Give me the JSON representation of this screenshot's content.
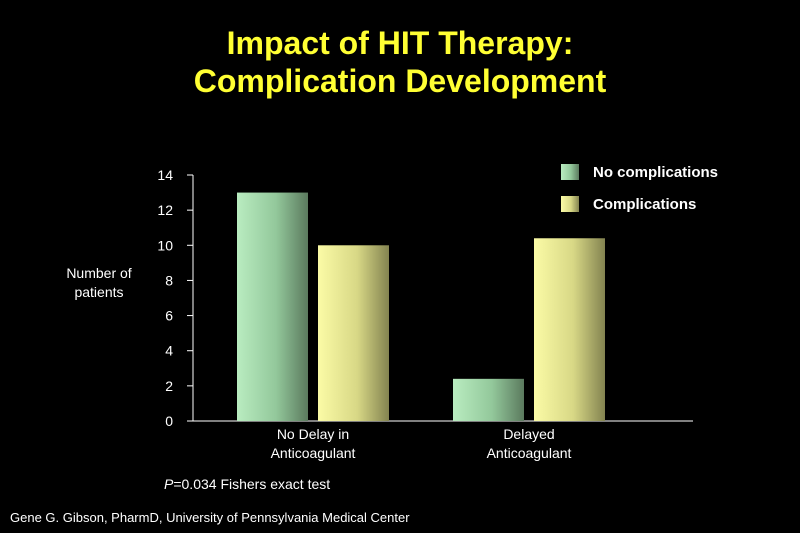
{
  "slide": {
    "title_line1": "Impact of HIT Therapy:",
    "title_line2": "Complication Development",
    "pvalue_var": "P",
    "pvalue_rest": "=0.034 Fishers exact test",
    "credit": "Gene G. Gibson, PharmD, University of Pennsylvania Medical Center"
  },
  "chart_data": {
    "type": "bar",
    "title": "Impact of HIT Therapy: Complication Development",
    "categories": [
      [
        "No Delay in",
        "Anticoagulant"
      ],
      [
        "Delayed",
        "Anticoagulant"
      ]
    ],
    "series": [
      {
        "name": "No complications",
        "values": [
          13,
          2.4
        ],
        "color": "#9fd9a8"
      },
      {
        "name": "Complications",
        "values": [
          10,
          10.4
        ],
        "color": "#ecec8c"
      }
    ],
    "xlabel": "",
    "ylabel": [
      "Number of",
      "patients"
    ],
    "ylim": [
      0,
      14
    ],
    "yticks": [
      0,
      2,
      4,
      6,
      8,
      10,
      12,
      14
    ],
    "grid": false,
    "legend_position": "top-right"
  }
}
